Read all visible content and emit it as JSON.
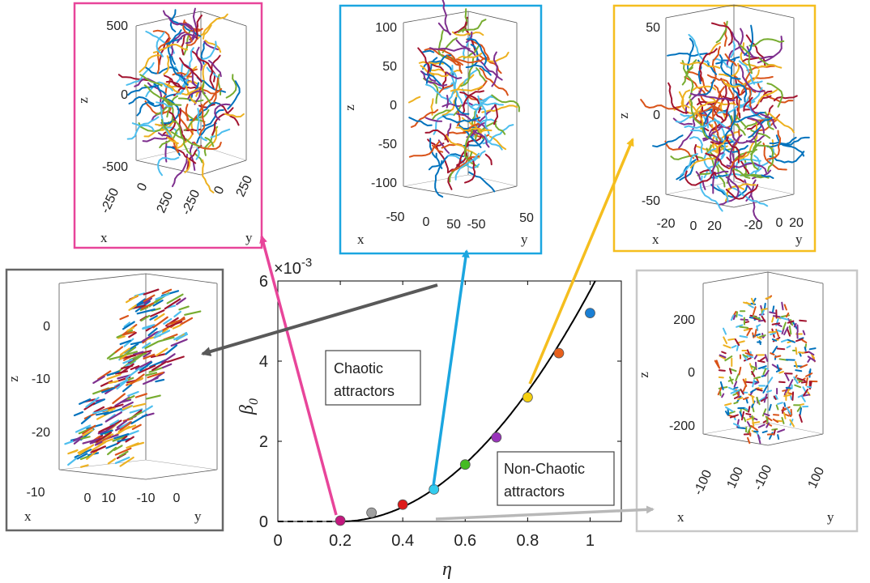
{
  "chart_data": {
    "type": "scatter",
    "xlabel": "η",
    "ylabel": "β",
    "ylabel_sub": "0",
    "y_multiplier": "×10",
    "y_multiplier_exp": "-3",
    "xlim": [
      0,
      1.1
    ],
    "ylim": [
      0,
      6
    ],
    "x_ticks": [
      0,
      0.2,
      0.4,
      0.6,
      0.8,
      1
    ],
    "y_ticks": [
      0,
      2,
      4,
      6
    ],
    "x_tick_labels": [
      "0",
      "0.2",
      "0.4",
      "0.6",
      "0.8",
      "1"
    ],
    "y_tick_labels": [
      "0",
      "2",
      "4",
      "6"
    ],
    "points": [
      {
        "x": 0.2,
        "y": 0.02,
        "color": "#c2187e"
      },
      {
        "x": 0.3,
        "y": 0.22,
        "color": "#a0a0a0"
      },
      {
        "x": 0.4,
        "y": 0.42,
        "color": "#dd1a1a"
      },
      {
        "x": 0.5,
        "y": 0.8,
        "color": "#33ccee"
      },
      {
        "x": 0.6,
        "y": 1.42,
        "color": "#44bb22"
      },
      {
        "x": 0.7,
        "y": 2.1,
        "color": "#9933bb"
      },
      {
        "x": 0.8,
        "y": 3.1,
        "color": "#f5d010"
      },
      {
        "x": 0.9,
        "y": 4.2,
        "color": "#e8601c"
      },
      {
        "x": 1.0,
        "y": 5.2,
        "color": "#1a7fd4"
      }
    ],
    "fit_curve": {
      "x0": 0.2,
      "scale": 9.0,
      "power": 2
    },
    "annotations": [
      "Chaotic attractors",
      "Non-Chaotic attractors"
    ]
  },
  "labels": {
    "chaotic_line1": "Chaotic",
    "chaotic_line2": "attractors",
    "nonchaotic_line1": "Non-Chaotic",
    "nonchaotic_line2": "attractors"
  },
  "insets": [
    {
      "id": "pink",
      "border": "#e8459a",
      "z_ticks": [
        "500",
        "0",
        "-500"
      ],
      "x_ticks": [
        "-250",
        "0",
        "250"
      ],
      "y_ticks": [
        "-250",
        "0",
        "250"
      ],
      "x_label": "x",
      "y_label": "y",
      "z_label": "z"
    },
    {
      "id": "blue",
      "border": "#1ba6e0",
      "z_ticks": [
        "100",
        "50",
        "0",
        "-50",
        "-100"
      ],
      "x_ticks": [
        "-50",
        "0",
        "50"
      ],
      "y_ticks": [
        "-50",
        "50"
      ],
      "x_label": "x",
      "y_label": "y",
      "z_label": "z"
    },
    {
      "id": "yellow",
      "border": "#f5be1e",
      "z_ticks": [
        "50",
        "0",
        "-50"
      ],
      "x_ticks": [
        "-20",
        "0",
        "20"
      ],
      "y_ticks": [
        "-20",
        "0",
        "20"
      ],
      "x_label": "x",
      "y_label": "y",
      "z_label": "z"
    },
    {
      "id": "darkgray",
      "border": "#666666",
      "z_ticks": [
        "0",
        "-10",
        "-20"
      ],
      "x_ticks": [
        "-10",
        "0",
        "10"
      ],
      "y_ticks": [
        "-10",
        "0"
      ],
      "x_label": "x",
      "y_label": "y",
      "z_label": "z"
    },
    {
      "id": "lightgray",
      "border": "#c8c8c8",
      "z_ticks": [
        "200",
        "0",
        "-200"
      ],
      "x_ticks": [
        "-100",
        "100"
      ],
      "y_ticks": [
        "-100",
        "100"
      ],
      "x_label": "x",
      "y_label": "y",
      "z_label": "z"
    }
  ],
  "palette": [
    "#0072bd",
    "#d95319",
    "#edb120",
    "#7e2f8e",
    "#77ac30",
    "#4dbeee",
    "#a2142f"
  ]
}
